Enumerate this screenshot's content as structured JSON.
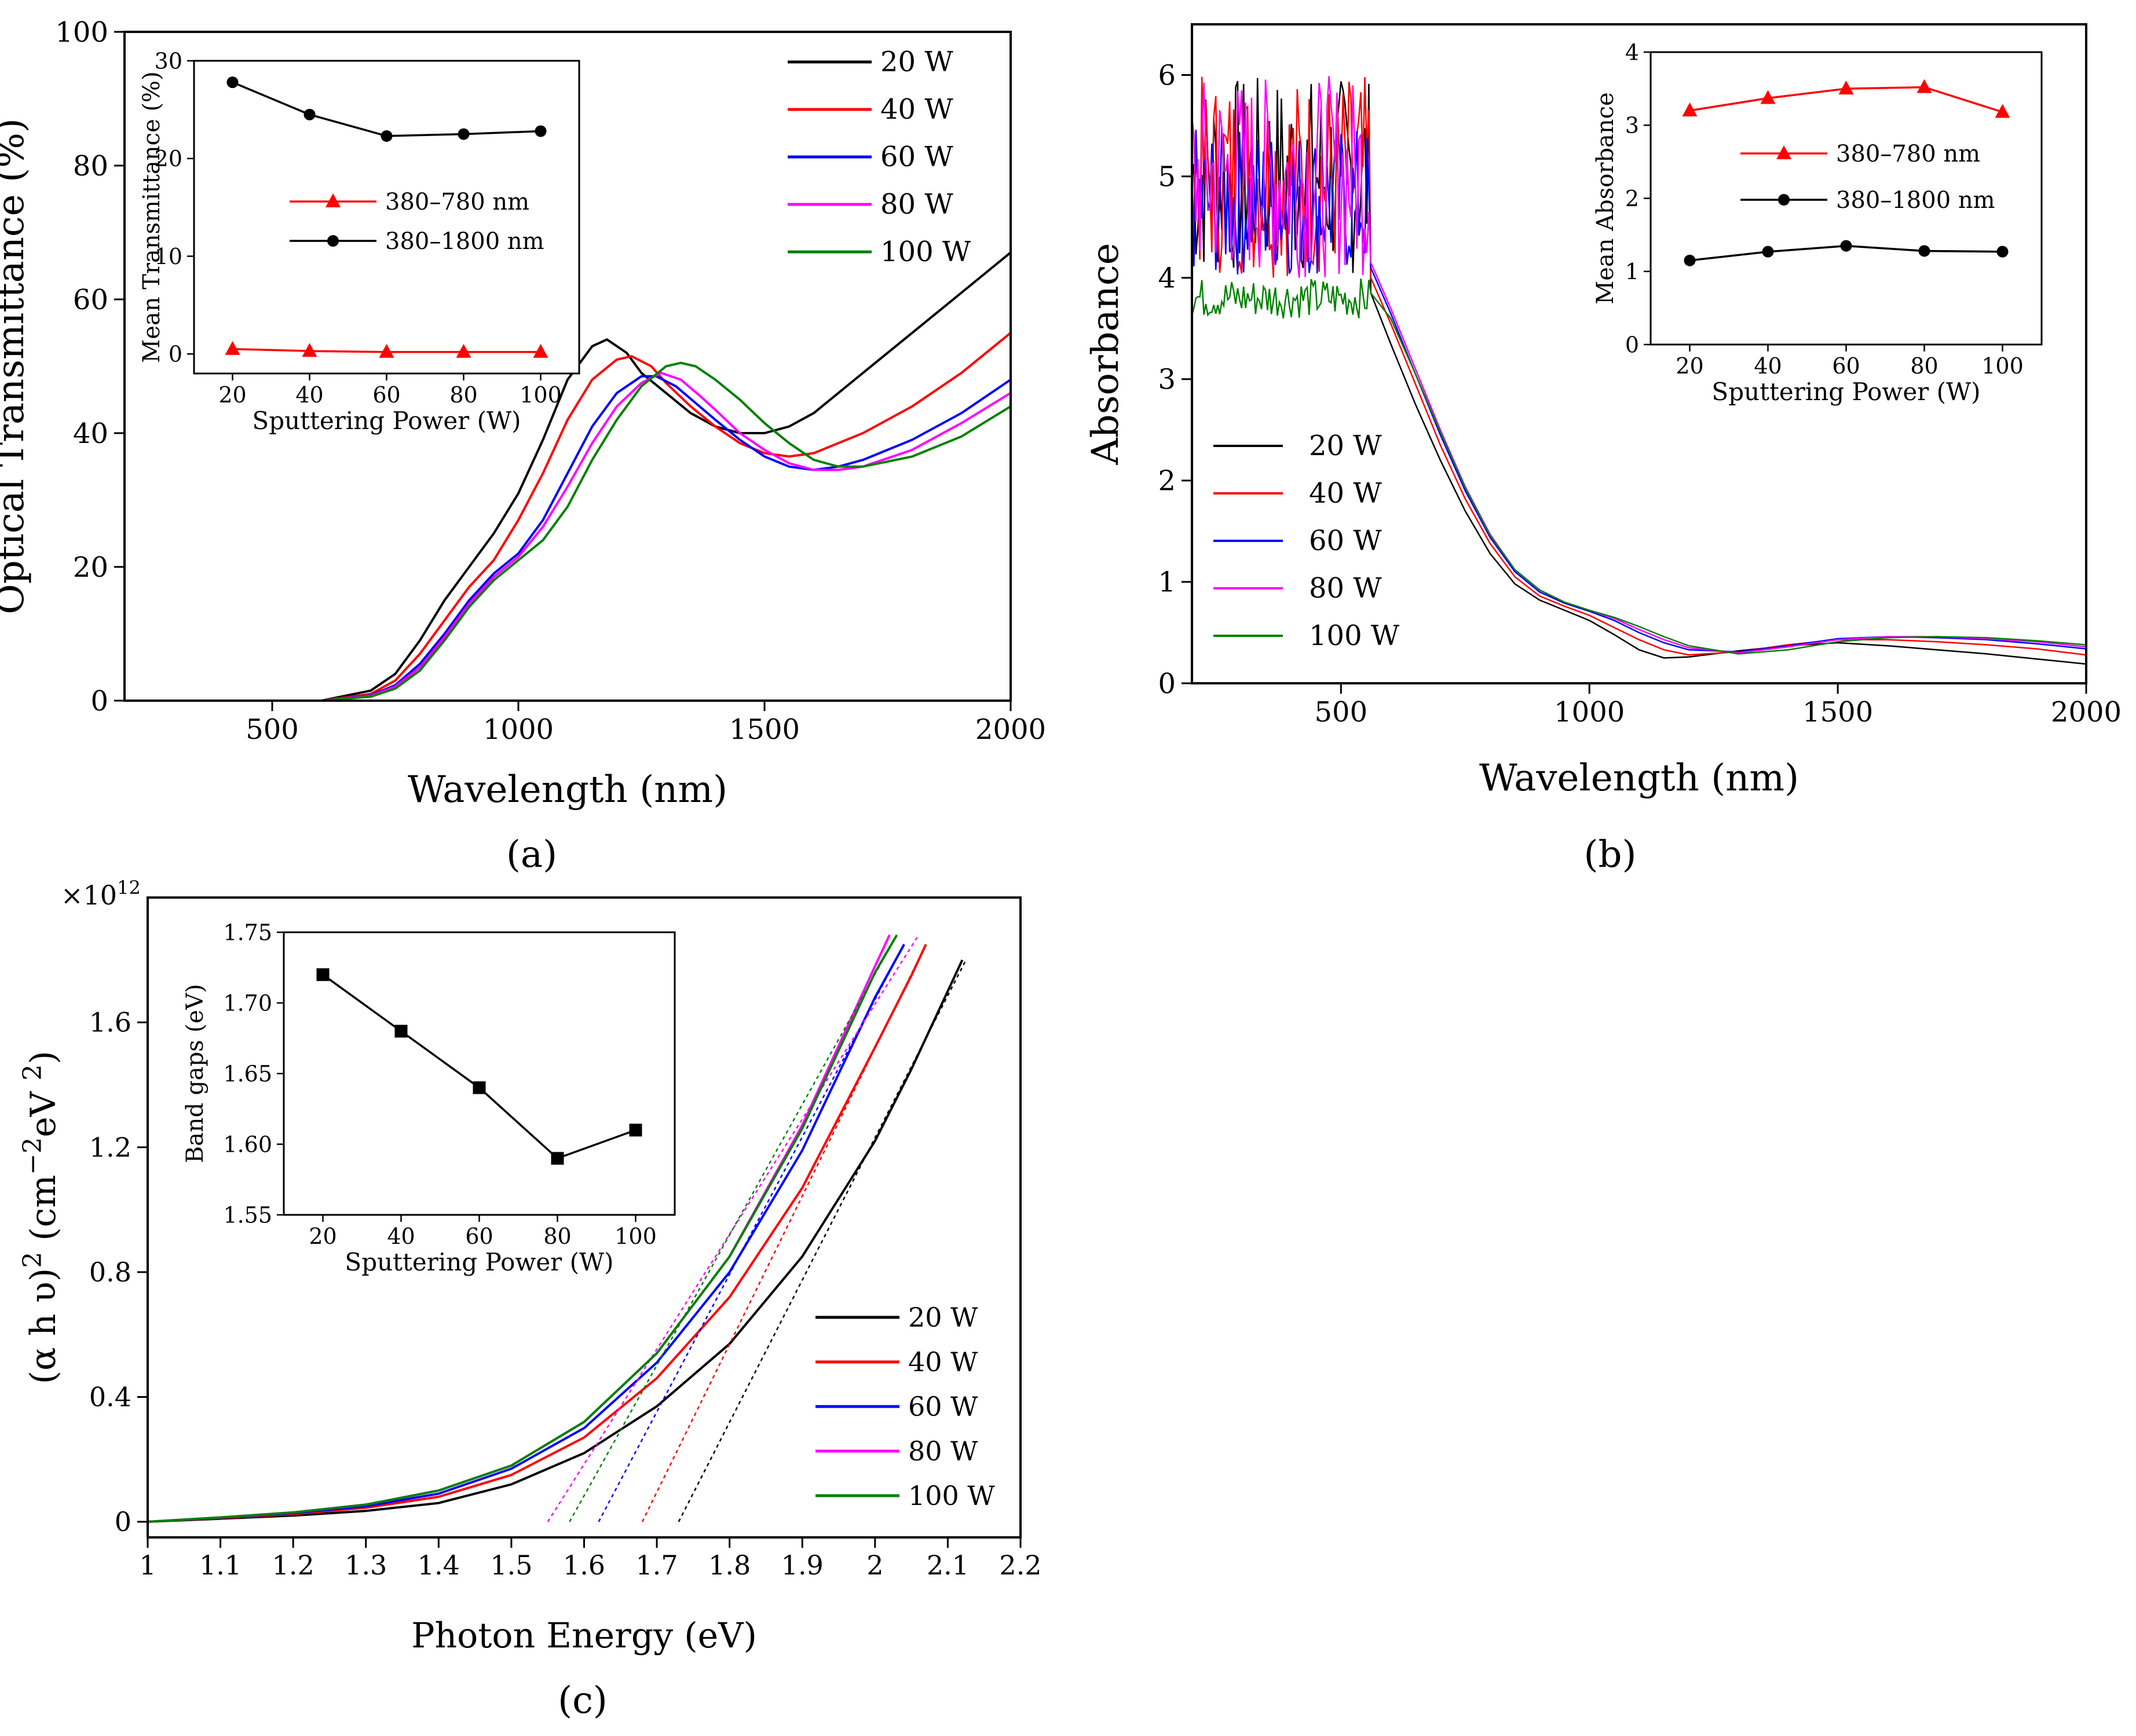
{
  "figure": {
    "labels": {
      "a": "(a)",
      "b": "(b)",
      "c": "(c)"
    }
  },
  "colors": {
    "20 W": "#000000",
    "40 W": "#ff0000",
    "60 W": "#0000ff",
    "80 W": "#ff00ff",
    "100 W": "#008000"
  },
  "chart_data": [
    {
      "id": "a",
      "type": "line",
      "title": "",
      "xlabel": "Wavelength (nm)",
      "ylabel": "Optical Transmittance (%)",
      "xlim": [
        200,
        2000
      ],
      "ylim": [
        0,
        100
      ],
      "xticks": [
        500,
        1000,
        1500,
        2000
      ],
      "yticks": [
        0,
        20,
        40,
        60,
        80,
        100
      ],
      "legend": [
        "20 W",
        "40 W",
        "60 W",
        "80 W",
        "100 W"
      ],
      "series": [
        {
          "name": "20 W",
          "x": [
            200,
            600,
            700,
            750,
            800,
            850,
            900,
            950,
            1000,
            1050,
            1100,
            1150,
            1180,
            1220,
            1250,
            1300,
            1350,
            1400,
            1450,
            1500,
            1550,
            1600,
            1700,
            1800,
            1900,
            2000
          ],
          "y": [
            0,
            0,
            1.5,
            4,
            9,
            15,
            20,
            25,
            31,
            39,
            48,
            53,
            54,
            52,
            49,
            46,
            43,
            41,
            40,
            40,
            41,
            43,
            49,
            55,
            61,
            67
          ]
        },
        {
          "name": "40 W",
          "x": [
            200,
            600,
            700,
            750,
            800,
            850,
            900,
            950,
            1000,
            1050,
            1100,
            1150,
            1200,
            1230,
            1270,
            1300,
            1350,
            1400,
            1450,
            1500,
            1550,
            1600,
            1700,
            1800,
            1900,
            2000
          ],
          "y": [
            0,
            0,
            1,
            3,
            7,
            12,
            17,
            21,
            27,
            34,
            42,
            48,
            51,
            51.5,
            50,
            47.5,
            44,
            41,
            38.5,
            37,
            36.5,
            37,
            40,
            44,
            49,
            55
          ]
        },
        {
          "name": "60 W",
          "x": [
            200,
            600,
            700,
            750,
            800,
            850,
            900,
            950,
            1000,
            1050,
            1100,
            1150,
            1200,
            1250,
            1280,
            1320,
            1360,
            1400,
            1450,
            1500,
            1550,
            1600,
            1650,
            1700,
            1800,
            1900,
            2000
          ],
          "y": [
            0,
            0,
            0.8,
            2.3,
            5.5,
            10,
            15,
            19,
            22,
            27,
            34,
            41,
            46,
            48.5,
            48.5,
            47,
            44.5,
            42,
            39,
            36.5,
            35,
            34.5,
            35,
            36,
            39,
            43,
            48
          ]
        },
        {
          "name": "80 W",
          "x": [
            200,
            600,
            700,
            750,
            800,
            850,
            900,
            950,
            1000,
            1050,
            1100,
            1150,
            1200,
            1250,
            1290,
            1330,
            1370,
            1400,
            1450,
            1500,
            1550,
            1600,
            1650,
            1700,
            1800,
            1900,
            2000
          ],
          "y": [
            0,
            0,
            0.7,
            2.1,
            5,
            9.5,
            14.5,
            18.5,
            21.5,
            26,
            32,
            38.5,
            44,
            47.5,
            49,
            48,
            45.5,
            43.5,
            40,
            37.5,
            35.5,
            34.5,
            34.5,
            35,
            37.5,
            41.5,
            46
          ]
        },
        {
          "name": "100 W",
          "x": [
            200,
            600,
            700,
            750,
            800,
            850,
            900,
            950,
            1000,
            1050,
            1100,
            1150,
            1200,
            1250,
            1300,
            1330,
            1360,
            1400,
            1450,
            1500,
            1550,
            1600,
            1650,
            1700,
            1800,
            1900,
            2000
          ],
          "y": [
            0,
            0,
            0.6,
            1.8,
            4.5,
            9,
            14,
            18,
            21,
            24,
            29,
            36,
            42,
            47,
            50,
            50.5,
            50,
            48,
            45,
            41.5,
            38.5,
            36,
            35,
            35,
            36.5,
            39.5,
            44
          ]
        }
      ],
      "inset": {
        "type": "line",
        "xlabel": "Sputtering Power (W)",
        "ylabel": "Mean Transmittance (%)",
        "xlim": [
          10,
          110
        ],
        "ylim": [
          -2,
          30
        ],
        "xticks": [
          20,
          40,
          60,
          80,
          100
        ],
        "yticks": [
          0,
          10,
          20,
          30
        ],
        "legend": [
          "380–780 nm",
          "380–1800 nm"
        ],
        "series": [
          {
            "name": "380–780 nm",
            "marker": "triangle",
            "color": "#ff0000",
            "x": [
              20,
              40,
              60,
              80,
              100
            ],
            "y": [
              0.5,
              0.3,
              0.2,
              0.2,
              0.2
            ]
          },
          {
            "name": "380–1800 nm",
            "marker": "circle",
            "color": "#000000",
            "x": [
              20,
              40,
              60,
              80,
              100
            ],
            "y": [
              27.8,
              24.5,
              22.3,
              22.5,
              22.8
            ]
          }
        ]
      }
    },
    {
      "id": "b",
      "type": "line",
      "title": "",
      "xlabel": "Wavelength (nm)",
      "ylabel": "Absorbance",
      "xlim": [
        200,
        2000
      ],
      "ylim": [
        0,
        6.5
      ],
      "xticks": [
        500,
        1000,
        1500,
        2000
      ],
      "yticks": [
        0,
        1,
        2,
        3,
        4,
        5,
        6
      ],
      "legend": [
        "20 W",
        "40 W",
        "60 W",
        "80 W",
        "100 W"
      ],
      "noise_region": [
        200,
        560
      ],
      "series": [
        {
          "name": "20 W",
          "noise": [
            4.0,
            6.0
          ],
          "x": [
            560,
            600,
            650,
            700,
            750,
            800,
            850,
            900,
            950,
            1000,
            1050,
            1100,
            1150,
            1200,
            1300,
            1400,
            1500,
            1600,
            1700,
            1800,
            1900,
            2000
          ],
          "y": [
            3.85,
            3.35,
            2.75,
            2.2,
            1.7,
            1.28,
            0.98,
            0.82,
            0.72,
            0.62,
            0.48,
            0.33,
            0.25,
            0.26,
            0.32,
            0.37,
            0.4,
            0.37,
            0.33,
            0.29,
            0.24,
            0.19
          ]
        },
        {
          "name": "40 W",
          "noise": [
            4.0,
            6.0
          ],
          "x": [
            560,
            600,
            650,
            700,
            750,
            800,
            850,
            900,
            950,
            1000,
            1050,
            1100,
            1150,
            1200,
            1300,
            1400,
            1500,
            1600,
            1700,
            1800,
            1900,
            2000
          ],
          "y": [
            4.0,
            3.55,
            2.95,
            2.35,
            1.82,
            1.38,
            1.05,
            0.86,
            0.76,
            0.67,
            0.55,
            0.43,
            0.33,
            0.28,
            0.31,
            0.38,
            0.43,
            0.43,
            0.41,
            0.38,
            0.34,
            0.28
          ]
        },
        {
          "name": "60 W",
          "noise": [
            4.0,
            5.5
          ],
          "x": [
            560,
            600,
            650,
            700,
            750,
            800,
            850,
            900,
            950,
            1000,
            1050,
            1100,
            1150,
            1200,
            1300,
            1400,
            1500,
            1600,
            1700,
            1800,
            1900,
            2000
          ],
          "y": [
            4.1,
            3.65,
            3.05,
            2.45,
            1.9,
            1.44,
            1.1,
            0.9,
            0.79,
            0.71,
            0.62,
            0.5,
            0.4,
            0.33,
            0.31,
            0.37,
            0.44,
            0.46,
            0.45,
            0.43,
            0.39,
            0.34
          ]
        },
        {
          "name": "80 W",
          "noise": [
            4.0,
            6.0
          ],
          "x": [
            560,
            600,
            650,
            700,
            750,
            800,
            850,
            900,
            950,
            1000,
            1050,
            1100,
            1150,
            1200,
            1300,
            1400,
            1500,
            1600,
            1700,
            1800,
            1900,
            2000
          ],
          "y": [
            4.15,
            3.7,
            3.1,
            2.5,
            1.94,
            1.47,
            1.12,
            0.92,
            0.8,
            0.72,
            0.64,
            0.53,
            0.43,
            0.35,
            0.3,
            0.36,
            0.43,
            0.46,
            0.46,
            0.44,
            0.41,
            0.36
          ]
        },
        {
          "name": "100 W",
          "noise": [
            3.6,
            4.0
          ],
          "x": [
            560,
            600,
            650,
            700,
            750,
            800,
            850,
            900,
            950,
            1000,
            1050,
            1100,
            1150,
            1200,
            1300,
            1400,
            1500,
            1600,
            1700,
            1800,
            1900,
            2000
          ],
          "y": [
            3.85,
            3.6,
            3.05,
            2.48,
            1.93,
            1.46,
            1.12,
            0.92,
            0.8,
            0.72,
            0.65,
            0.56,
            0.46,
            0.37,
            0.29,
            0.33,
            0.41,
            0.45,
            0.46,
            0.45,
            0.42,
            0.38
          ]
        }
      ],
      "inset": {
        "type": "line",
        "xlabel": "Sputtering Power (W)",
        "ylabel": "Mean Absorbance",
        "xlim": [
          10,
          110
        ],
        "ylim": [
          0,
          4
        ],
        "xticks": [
          20,
          40,
          60,
          80,
          100
        ],
        "yticks": [
          0,
          1,
          2,
          3,
          4
        ],
        "legend": [
          "380–780 nm",
          "380–1800 nm"
        ],
        "series": [
          {
            "name": "380–780 nm",
            "marker": "triangle",
            "color": "#ff0000",
            "x": [
              20,
              40,
              60,
              80,
              100
            ],
            "y": [
              3.2,
              3.37,
              3.5,
              3.52,
              3.18
            ]
          },
          {
            "name": "380–1800 nm",
            "marker": "circle",
            "color": "#000000",
            "x": [
              20,
              40,
              60,
              80,
              100
            ],
            "y": [
              1.15,
              1.27,
              1.35,
              1.28,
              1.27
            ]
          }
        ]
      }
    },
    {
      "id": "c",
      "type": "line",
      "title": "",
      "xlabel": "Photon Energy (eV)",
      "ylabel": "(α h υ)² (cm⁻² eV ²)",
      "ylabel_parts": [
        "(α h υ)",
        "2",
        " (cm",
        "−2",
        "eV ",
        "2",
        ")"
      ],
      "multiplier": "×10",
      "multiplier_exp": "12",
      "xlim": [
        1.0,
        2.2
      ],
      "ylim": [
        -0.05,
        2.0
      ],
      "xticks": [
        1.0,
        1.1,
        1.2,
        1.3,
        1.4,
        1.5,
        1.6,
        1.7,
        1.8,
        1.9,
        2.0,
        2.1,
        2.2
      ],
      "yticks": [
        0.0,
        0.4,
        0.8,
        1.2,
        1.6
      ],
      "legend": [
        "20 W",
        "40 W",
        "60 W",
        "80 W",
        "100 W"
      ],
      "series": [
        {
          "name": "20 W",
          "x": [
            1.0,
            1.1,
            1.2,
            1.3,
            1.4,
            1.5,
            1.6,
            1.7,
            1.8,
            1.9,
            2.0,
            2.05,
            2.1,
            2.12
          ],
          "y": [
            0.0,
            0.01,
            0.02,
            0.035,
            0.06,
            0.12,
            0.22,
            0.37,
            0.57,
            0.85,
            1.22,
            1.45,
            1.7,
            1.8
          ],
          "tangent": {
            "x0": 1.73,
            "x1": 2.125,
            "y1": 1.8
          }
        },
        {
          "name": "40 W",
          "x": [
            1.0,
            1.1,
            1.2,
            1.3,
            1.4,
            1.5,
            1.6,
            1.7,
            1.8,
            1.9,
            2.0,
            2.05,
            2.07
          ],
          "y": [
            0.0,
            0.012,
            0.025,
            0.045,
            0.08,
            0.15,
            0.27,
            0.46,
            0.72,
            1.07,
            1.52,
            1.75,
            1.85
          ],
          "tangent": {
            "x0": 1.68,
            "x1": 2.07,
            "y1": 1.85
          }
        },
        {
          "name": "60 W",
          "x": [
            1.0,
            1.1,
            1.2,
            1.3,
            1.4,
            1.5,
            1.6,
            1.7,
            1.8,
            1.9,
            2.0,
            2.04
          ],
          "y": [
            0.0,
            0.013,
            0.028,
            0.05,
            0.09,
            0.17,
            0.3,
            0.51,
            0.8,
            1.19,
            1.68,
            1.85
          ],
          "tangent": {
            "x0": 1.62,
            "x1": 2.04,
            "y1": 1.85
          }
        },
        {
          "name": "80 W",
          "x": [
            1.0,
            1.1,
            1.2,
            1.3,
            1.4,
            1.5,
            1.6,
            1.7,
            1.8,
            1.9,
            2.0,
            2.02
          ],
          "y": [
            0.0,
            0.014,
            0.03,
            0.055,
            0.1,
            0.18,
            0.32,
            0.54,
            0.85,
            1.27,
            1.78,
            1.88
          ],
          "tangent": {
            "x0": 1.55,
            "x1": 2.06,
            "y1": 1.88
          }
        },
        {
          "name": "100 W",
          "x": [
            1.0,
            1.1,
            1.2,
            1.3,
            1.4,
            1.5,
            1.6,
            1.7,
            1.8,
            1.9,
            2.0,
            2.03
          ],
          "y": [
            0.0,
            0.014,
            0.03,
            0.055,
            0.1,
            0.18,
            0.32,
            0.54,
            0.85,
            1.26,
            1.76,
            1.88
          ],
          "tangent": {
            "x0": 1.58,
            "x1": 2.03,
            "y1": 1.88
          }
        }
      ],
      "inset": {
        "type": "line",
        "xlabel": "Sputtering Power (W)",
        "ylabel": "Band gaps (eV)",
        "xlim": [
          10,
          110
        ],
        "ylim": [
          1.55,
          1.75
        ],
        "xticks": [
          20,
          40,
          60,
          80,
          100
        ],
        "yticks": [
          1.55,
          1.6,
          1.65,
          1.7,
          1.75
        ],
        "ytick_labels": [
          "1.55",
          "1.60",
          "1.65",
          "1.70",
          "1.75"
        ],
        "series": [
          {
            "name": "Band gap",
            "marker": "square",
            "color": "#000000",
            "x": [
              20,
              40,
              60,
              80,
              100
            ],
            "y": [
              1.72,
              1.68,
              1.64,
              1.59,
              1.61
            ]
          }
        ]
      }
    }
  ]
}
